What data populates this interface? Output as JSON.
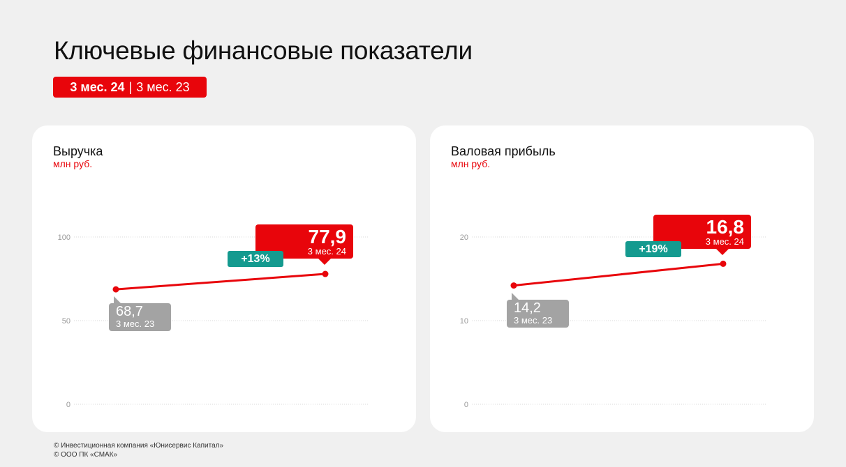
{
  "page": {
    "title": "Ключевые финансовые показатели",
    "period_current": "3 мес. 24",
    "period_separator": "|",
    "period_previous": "3 мес. 23"
  },
  "colors": {
    "accent": "#e8050b",
    "growth": "#149a8f",
    "previous": "#a3a3a3",
    "card": "#ffffff",
    "background": "#f0f0f0"
  },
  "chart_data": [
    {
      "type": "line",
      "title": "Выручка",
      "ylabel": "млн руб.",
      "ylim": [
        0,
        100
      ],
      "yticks": [
        "0",
        "50",
        "100"
      ],
      "grid": true,
      "points": [
        {
          "period": "3 мес. 23",
          "value": 68.7,
          "label": "68,7"
        },
        {
          "period": "3 мес. 24",
          "value": 77.9,
          "label": "77,9"
        }
      ],
      "growth_label": "+13%"
    },
    {
      "type": "line",
      "title": "Валовая прибыль",
      "ylabel": "млн руб.",
      "ylim": [
        0,
        20
      ],
      "yticks": [
        "0",
        "10",
        "20"
      ],
      "grid": true,
      "points": [
        {
          "period": "3 мес. 23",
          "value": 14.2,
          "label": "14,2"
        },
        {
          "period": "3 мес. 24",
          "value": 16.8,
          "label": "16,8"
        }
      ],
      "growth_label": "+19%"
    }
  ],
  "footer": {
    "line1": "© Инвестиционная компания «Юнисервис Капитал»",
    "line2": "© ООО ПК «СМАК»"
  }
}
